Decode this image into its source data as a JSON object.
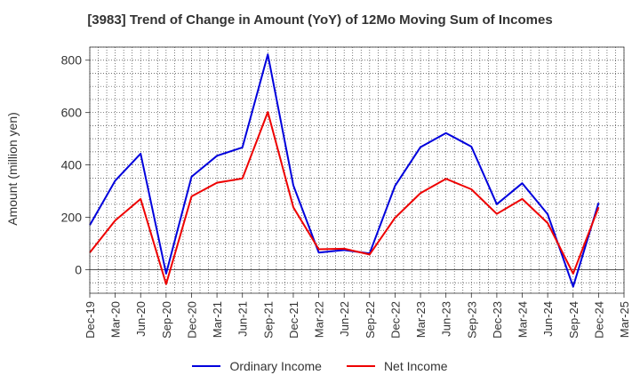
{
  "chart_data": {
    "type": "line",
    "title": "[3983]  Trend of Change in Amount (YoY) of 12Mo Moving Sum of Incomes",
    "ylabel": "Amount (million yen)",
    "xlabel": "",
    "ylim": [
      -90,
      850
    ],
    "yticks": [
      0,
      200,
      400,
      600,
      800
    ],
    "grid": true,
    "legend_position": "bottom",
    "x_tick_labels": [
      "Dec-19",
      "Mar-20",
      "Jun-20",
      "Sep-20",
      "Dec-20",
      "Mar-21",
      "Jun-21",
      "Sep-21",
      "Dec-21",
      "Mar-22",
      "Jun-22",
      "Sep-22",
      "Dec-22",
      "Mar-23",
      "Jun-23",
      "Sep-23",
      "Dec-23",
      "Mar-24",
      "Jun-24",
      "Sep-24",
      "Dec-24",
      "Mar-25"
    ],
    "series": [
      {
        "name": "Ordinary Income",
        "color": "#0000dd",
        "values": [
          170,
          340,
          443,
          -15,
          355,
          435,
          467,
          822,
          322,
          65,
          75,
          62,
          320,
          468,
          522,
          470,
          250,
          330,
          212,
          -65,
          255
        ]
      },
      {
        "name": "Net Income",
        "color": "#ee0000",
        "values": [
          65,
          188,
          270,
          -55,
          280,
          332,
          348,
          602,
          238,
          78,
          80,
          58,
          198,
          292,
          347,
          307,
          213,
          270,
          178,
          -15,
          238
        ]
      }
    ]
  }
}
